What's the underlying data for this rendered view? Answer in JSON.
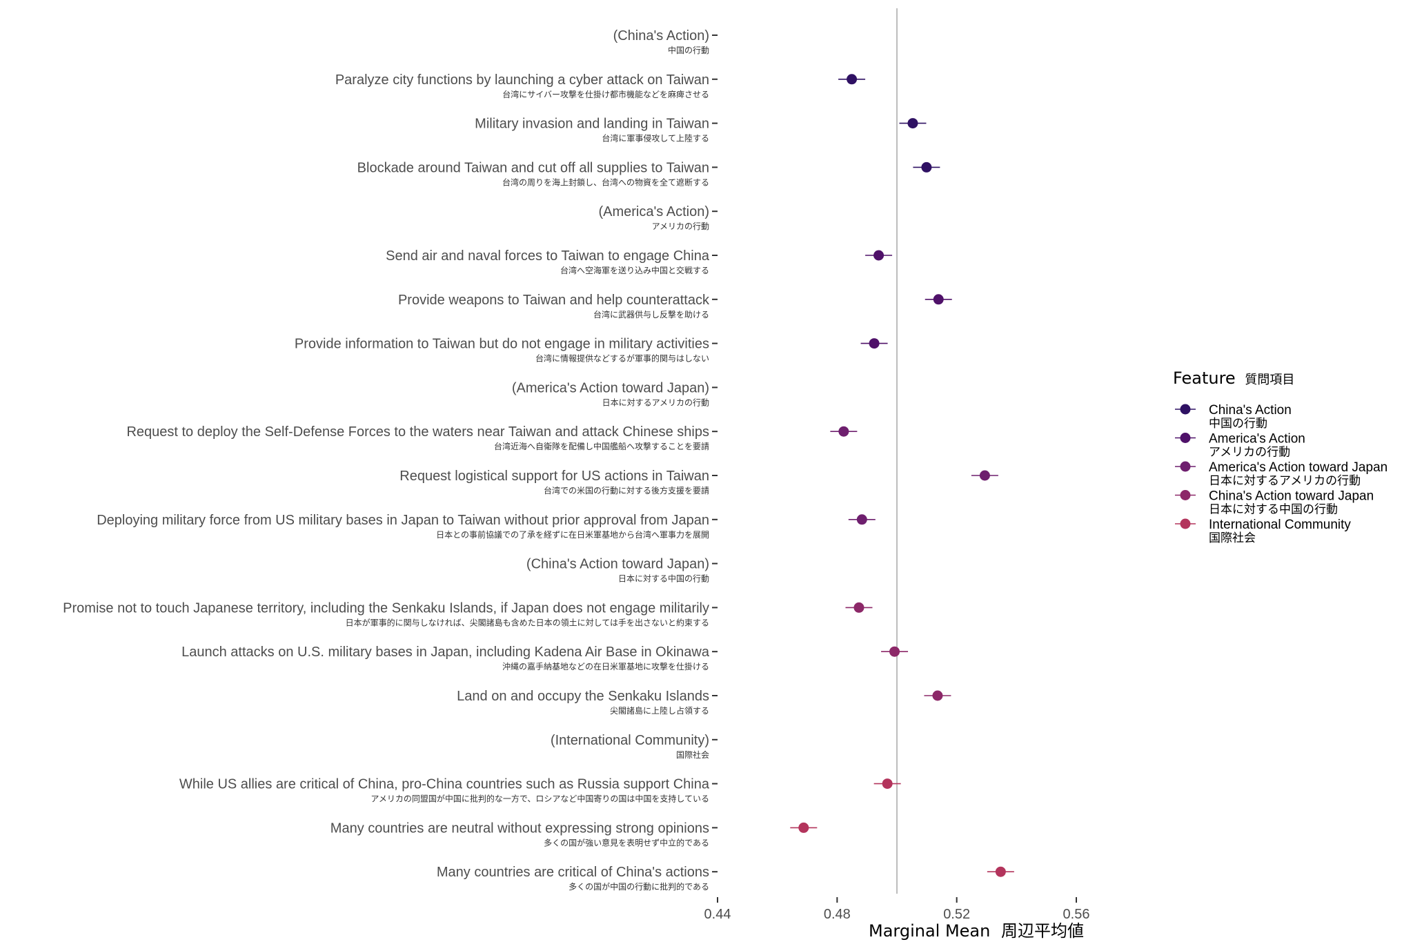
{
  "chart_data": {
    "type": "scatter",
    "xlabel_en": "Marginal Mean",
    "xlabel_ja": "周辺平均値",
    "xlim": [
      0.44,
      0.575
    ],
    "x_ticks": [
      "0.44",
      "0.48",
      "0.52",
      "0.56"
    ],
    "x_tick_values": [
      0.44,
      0.48,
      0.52,
      0.56
    ],
    "reference_line": 0.5,
    "grid": false,
    "legend": {
      "title_en": "Feature",
      "title_ja": "質問項目",
      "position": "right",
      "entries": [
        {
          "en": "China's Action",
          "ja": "中国の行動",
          "color": "#2f1163"
        },
        {
          "en": "America's Action",
          "ja": "アメリカの行動",
          "color": "#4f1169"
        },
        {
          "en": "America's Action toward Japan",
          "ja": "日本に対するアメリカの行動",
          "color": "#6e1f6e"
        },
        {
          "en": "China's Action toward Japan",
          "ja": "日本に対する中国の行動",
          "color": "#8c2868"
        },
        {
          "en": "International Community",
          "ja": "国際社会",
          "color": "#b3345c"
        }
      ]
    },
    "rows": [
      {
        "en": "(China's Action)",
        "ja": "中国の行動",
        "header": true,
        "group": 0
      },
      {
        "en": "Paralyze city functions by launching a cyber attack on Taiwan",
        "ja": "台湾にサイバー攻撃を仕掛け都市機能などを麻痺させる",
        "mean": 0.4849,
        "lo": 0.4804,
        "hi": 0.4894,
        "group": 0
      },
      {
        "en": "Military invasion and landing in Taiwan",
        "ja": "台湾に軍事侵攻して上陸する",
        "mean": 0.5053,
        "lo": 0.5008,
        "hi": 0.5098,
        "group": 0
      },
      {
        "en": "Blockade around Taiwan and cut off all supplies to Taiwan",
        "ja": "台湾の周りを海上封鎖し、台湾への物資を全て遮断する",
        "mean": 0.5099,
        "lo": 0.5054,
        "hi": 0.5144,
        "group": 0
      },
      {
        "en": "(America's Action)",
        "ja": "アメリカの行動",
        "header": true,
        "group": 1
      },
      {
        "en": "Send air and naval forces to Taiwan to engage China",
        "ja": "台湾へ空海軍を送り込み中国と交戦する",
        "mean": 0.4939,
        "lo": 0.4894,
        "hi": 0.4984,
        "group": 1
      },
      {
        "en": "Provide weapons to Taiwan and help counterattack",
        "ja": "台湾に武器供与し反撃を助ける",
        "mean": 0.5139,
        "lo": 0.5094,
        "hi": 0.5184,
        "group": 1
      },
      {
        "en": "Provide information to Taiwan but do not engage in military activities",
        "ja": "台湾に情報提供などするが軍事的関与はしない",
        "mean": 0.4924,
        "lo": 0.4879,
        "hi": 0.4969,
        "group": 1
      },
      {
        "en": "(America's Action toward Japan)",
        "ja": "日本に対するアメリカの行動",
        "header": true,
        "group": 2
      },
      {
        "en": "Request to deploy the Self-Defense Forces to the waters near Taiwan and attack Chinese ships",
        "ja": "台湾近海へ自衛隊を配備し中国艦船へ攻撃することを要請",
        "mean": 0.4822,
        "lo": 0.4777,
        "hi": 0.4867,
        "group": 2
      },
      {
        "en": "Request logistical support for US actions in Taiwan",
        "ja": "台湾での米国の行動に対する後方支援を要請",
        "mean": 0.5294,
        "lo": 0.5249,
        "hi": 0.5339,
        "group": 2
      },
      {
        "en": "Deploying military force from US military bases in Japan to Taiwan without prior approval from Japan",
        "ja": "日本との事前協議での了承を経ずに在日米軍基地から台湾へ軍事力を展開",
        "mean": 0.4883,
        "lo": 0.4838,
        "hi": 0.4928,
        "group": 2
      },
      {
        "en": "(China's Action toward Japan)",
        "ja": "日本に対する中国の行動",
        "header": true,
        "group": 3
      },
      {
        "en": "Promise not to touch Japanese territory, including the Senkaku Islands, if Japan does not engage militarily",
        "ja": "日本が軍事的に関与しなければ、尖閣諸島も含めた日本の領土に対しては手を出さないと約束する",
        "mean": 0.4873,
        "lo": 0.4828,
        "hi": 0.4918,
        "group": 3
      },
      {
        "en": "Launch attacks on U.S. military bases in Japan, including Kadena Air Base in Okinawa",
        "ja": "沖縄の嘉手納基地などの在日米軍基地に攻撃を仕掛ける",
        "mean": 0.4992,
        "lo": 0.4947,
        "hi": 0.5037,
        "group": 3
      },
      {
        "en": "Land on and occupy the Senkaku Islands",
        "ja": "尖閣諸島に上陸し占領する",
        "mean": 0.5136,
        "lo": 0.5091,
        "hi": 0.5181,
        "group": 3
      },
      {
        "en": "(International Community)",
        "ja": "国際社会",
        "header": true,
        "group": 4
      },
      {
        "en": "While US allies are critical of China, pro-China countries such as Russia support China",
        "ja": "アメリカの同盟国が中国に批判的な一方で、ロシアなど中国寄りの国は中国を支持している",
        "mean": 0.4968,
        "lo": 0.4923,
        "hi": 0.5013,
        "group": 4
      },
      {
        "en": "Many countries are neutral without expressing strong opinions",
        "ja": "多くの国が強い意見を表明せず中立的である",
        "mean": 0.4688,
        "lo": 0.4643,
        "hi": 0.4733,
        "group": 4
      },
      {
        "en": "Many countries are critical of China's actions",
        "ja": "多くの国が中国の行動に批判的である",
        "mean": 0.5347,
        "lo": 0.5302,
        "hi": 0.5392,
        "group": 4
      }
    ]
  }
}
